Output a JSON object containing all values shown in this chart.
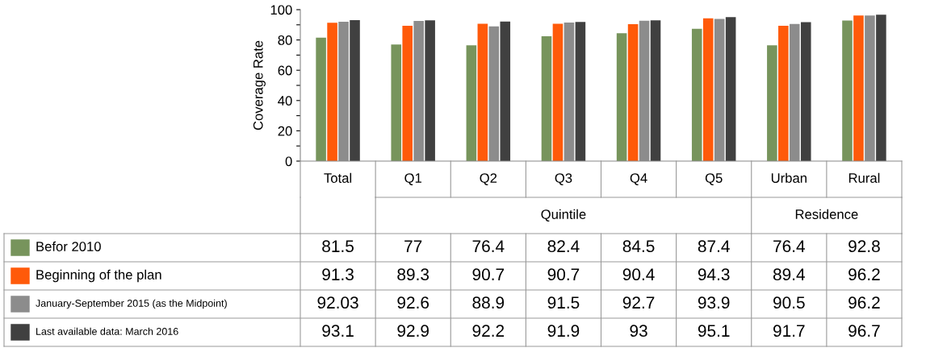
{
  "chart_data": {
    "type": "bar",
    "ylabel": "Coverage Rate",
    "categories": [
      "Total",
      "Q1",
      "Q2",
      "Q3",
      "Q4",
      "Q5",
      "Urban",
      "Rural"
    ],
    "series": [
      {
        "name": "Befor 2010",
        "color": "#77945c",
        "values": [
          81.5,
          77,
          76.4,
          82.4,
          84.5,
          87.4,
          76.4,
          92.8
        ]
      },
      {
        "name": "Beginning of the plan",
        "color": "#ff5a0a",
        "values": [
          91.3,
          89.3,
          90.7,
          90.7,
          90.4,
          94.3,
          89.4,
          96.2
        ]
      },
      {
        "name": "January-September 2015 (as the Midpoint)",
        "color": "#8c8c8c",
        "values": [
          92.03,
          92.6,
          88.9,
          91.5,
          92.7,
          93.9,
          90.5,
          96.2
        ]
      },
      {
        "name": "Last available data: March 2016",
        "color": "#404040",
        "values": [
          93.1,
          92.9,
          92.2,
          91.9,
          93,
          95.1,
          91.7,
          96.7
        ]
      }
    ],
    "annotations": [
      "Quintile",
      "Residence"
    ],
    "ylim": [
      0,
      100
    ],
    "yticks": [
      0,
      {
        "value": 10,
        "label": null
      },
      20,
      {
        "value": 30,
        "label": null
      },
      40,
      {
        "value": 50,
        "label": null
      },
      60,
      {
        "value": 70,
        "label": null
      },
      80,
      {
        "value": 90,
        "label": null
      },
      100
    ],
    "data_labels": true,
    "grid": false,
    "legend": "bottom"
  }
}
